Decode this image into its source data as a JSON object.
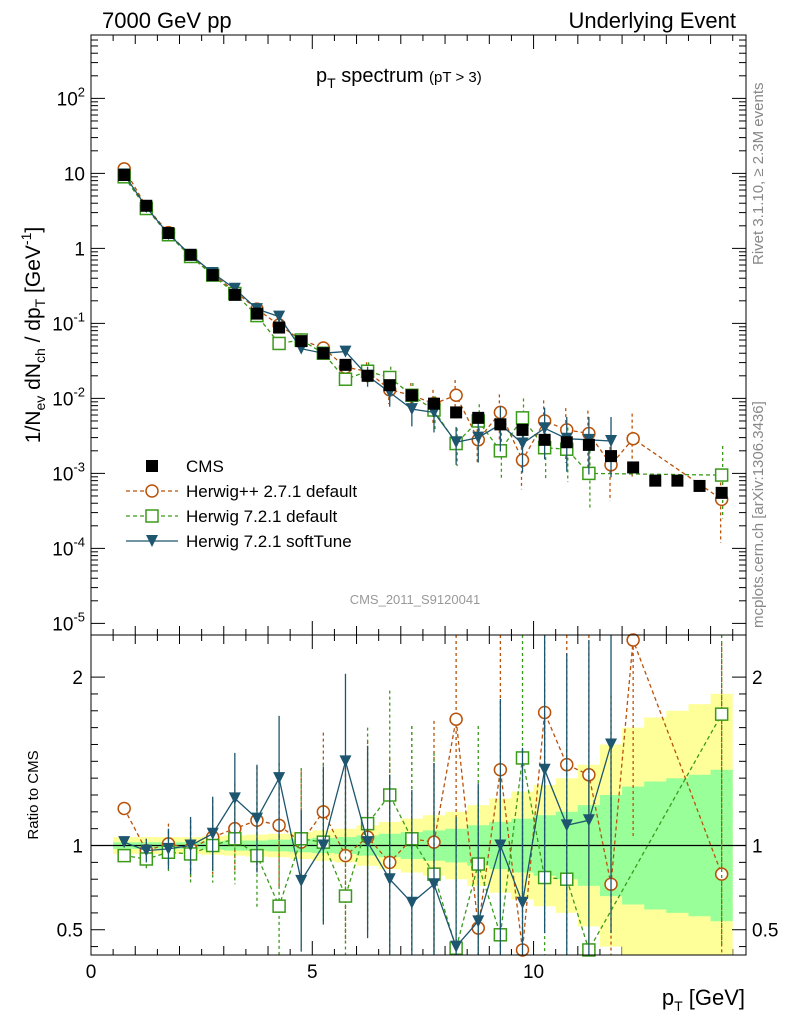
{
  "header": {
    "left": "7000 GeV pp",
    "right": "Underlying Event"
  },
  "side_labels": {
    "rivet": "Rivet 3.1.10, ≥ 2.3M events",
    "mcplots": "mcplots.cern.ch [arXiv:1306.3436]"
  },
  "watermark": "CMS_2011_S9120041",
  "colors": {
    "cms": "#000000",
    "herwigpp": "#b8520a",
    "herwig721": "#3a9a1a",
    "softtune": "#1d566e",
    "band_yellow": "#ffff99",
    "band_green": "#99ff99"
  },
  "chart_data": [
    {
      "type": "scatter",
      "panel": "main",
      "title": "p_T spectrum (pT > 3)",
      "xlabel": "p_T [GeV]",
      "ylabel": "1/N_ev dN_ch / dp_T [GeV^-1]",
      "yscale": "log",
      "xlim": [
        0,
        14.8
      ],
      "ylim": [
        7e-06,
        700
      ],
      "yticks": [
        {
          "v": 1e-05,
          "label": "10^-5"
        },
        {
          "v": 0.0001,
          "label": "10^-4"
        },
        {
          "v": 0.001,
          "label": "10^-3"
        },
        {
          "v": 0.01,
          "label": "10^-2"
        },
        {
          "v": 0.1,
          "label": "10^-1"
        },
        {
          "v": 1,
          "label": "1"
        },
        {
          "v": 10,
          "label": "10"
        },
        {
          "v": 100,
          "label": "10^2"
        }
      ],
      "legend_position": "bottom-left",
      "x": [
        0.75,
        1.25,
        1.75,
        2.25,
        2.75,
        3.25,
        3.75,
        4.25,
        4.75,
        5.25,
        5.75,
        6.25,
        6.75,
        7.25,
        7.75,
        8.25,
        8.75,
        9.25,
        9.75,
        10.25,
        10.75,
        11.25,
        11.75,
        12.25,
        12.75,
        13.25,
        13.75,
        14.25
      ],
      "series": [
        {
          "name": "CMS",
          "key": "cms",
          "marker": "square",
          "values": [
            9.5,
            3.7,
            1.6,
            0.82,
            0.44,
            0.24,
            0.135,
            0.088,
            0.058,
            0.04,
            0.028,
            0.02,
            0.015,
            0.011,
            0.0085,
            0.0065,
            0.0055,
            0.0045,
            0.0038,
            0.0028,
            0.0026,
            0.0024,
            0.0017,
            0.0012,
            0.0008,
            0.0008,
            0.00068,
            0.00055
          ]
        },
        {
          "name": "Herwig++ 2.7.1 default",
          "key": "herwigpp",
          "marker": "circle",
          "values": [
            11.5,
            3.6,
            1.62,
            0.8,
            0.46,
            0.265,
            0.155,
            0.095,
            0.06,
            0.047,
            0.026,
            0.023,
            0.013,
            0.011,
            0.0085,
            0.011,
            0.0028,
            0.0065,
            0.0015,
            0.005,
            0.0038,
            0.0034,
            0.0013,
            0.0029,
            null,
            null,
            null,
            0.00045
          ]
        },
        {
          "name": "Herwig 7.2.1 default",
          "key": "herwig721",
          "marker": "open-square",
          "values": [
            9.0,
            3.4,
            1.52,
            0.78,
            0.44,
            0.25,
            0.127,
            0.054,
            0.06,
            0.04,
            0.018,
            0.023,
            0.019,
            0.011,
            0.007,
            0.0025,
            0.005,
            0.002,
            0.0055,
            0.0022,
            0.0021,
            0.001,
            null,
            null,
            null,
            null,
            null,
            0.00095
          ]
        },
        {
          "name": "Herwig 7.2.1 softTune",
          "key": "softtune",
          "marker": "triangle-down",
          "values": [
            9.7,
            3.55,
            1.55,
            0.82,
            0.47,
            0.29,
            0.155,
            0.123,
            0.046,
            0.04,
            0.042,
            0.02,
            0.012,
            0.0072,
            0.0065,
            0.0026,
            0.003,
            0.0045,
            0.0025,
            0.004,
            0.0029,
            0.0028,
            0.0027,
            null,
            null,
            null,
            null,
            null
          ]
        }
      ]
    },
    {
      "type": "scatter",
      "panel": "ratio",
      "xlabel": "p_T [GeV]",
      "ylabel": "Ratio to CMS",
      "xlim": [
        0,
        14.8
      ],
      "ylim": [
        0.35,
        2.25
      ],
      "yticks": [
        0.5,
        1,
        2
      ],
      "xticks": [
        0,
        5,
        10
      ],
      "reference_line": 1,
      "band_inner_halfwidth": [
        0.02,
        0.02,
        0.02,
        0.02,
        0.025,
        0.03,
        0.03,
        0.035,
        0.04,
        0.045,
        0.05,
        0.06,
        0.07,
        0.08,
        0.09,
        0.1,
        0.12,
        0.14,
        0.16,
        0.18,
        0.2,
        0.24,
        0.3,
        0.35,
        0.38,
        0.4,
        0.42,
        0.45
      ],
      "band_outer_halfwidth": [
        0.05,
        0.05,
        0.05,
        0.05,
        0.055,
        0.06,
        0.065,
        0.07,
        0.08,
        0.09,
        0.1,
        0.12,
        0.14,
        0.16,
        0.18,
        0.2,
        0.24,
        0.28,
        0.32,
        0.36,
        0.4,
        0.48,
        0.6,
        0.7,
        0.76,
        0.8,
        0.84,
        0.9
      ],
      "series": [
        {
          "name": "Herwig++ 2.7.1 default",
          "key": "herwigpp",
          "values": [
            1.22,
            0.97,
            1.01,
            0.98,
            1.05,
            1.1,
            1.15,
            1.12,
            1.02,
            1.2,
            0.94,
            1.05,
            0.9,
            1.04,
            1.02,
            1.75,
            0.51,
            1.45,
            0.38,
            1.79,
            1.48,
            1.42,
            0.77,
            2.22,
            null,
            null,
            null,
            0.83
          ]
        },
        {
          "name": "Herwig 7.2.1 default",
          "key": "herwig721",
          "values": [
            0.94,
            0.92,
            0.96,
            0.95,
            1.0,
            1.04,
            0.94,
            0.64,
            1.04,
            1.02,
            0.7,
            1.13,
            1.3,
            1.04,
            0.83,
            0.39,
            0.89,
            0.47,
            1.52,
            0.81,
            0.8,
            0.38,
            null,
            null,
            null,
            null,
            null,
            1.78
          ]
        },
        {
          "name": "Herwig 7.2.1 softTune",
          "key": "softtune",
          "values": [
            1.02,
            0.97,
            0.98,
            1.0,
            1.07,
            1.28,
            1.16,
            1.4,
            0.79,
            1.0,
            1.5,
            1.02,
            0.8,
            0.66,
            0.77,
            0.4,
            0.55,
            1.0,
            0.66,
            1.45,
            1.12,
            1.15,
            1.6,
            null,
            null,
            null,
            null,
            null
          ]
        }
      ]
    }
  ]
}
